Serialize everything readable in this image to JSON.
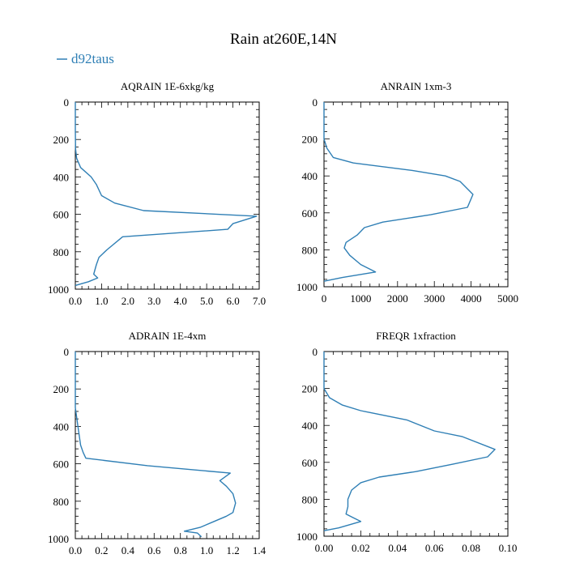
{
  "figure": {
    "title": "Rain at260E,14N",
    "legend": {
      "label": "d92taus",
      "color": "#2f7fb5",
      "placement": "top-left"
    }
  },
  "chart_data": [
    {
      "type": "line",
      "title": "AQRAIN  1E-6xkg/kg",
      "xlim": [
        0,
        7
      ],
      "xticks": [
        0,
        1,
        2,
        3,
        4,
        5,
        6,
        7
      ],
      "xtick_labels": [
        "0.0",
        "1.0",
        "2.0",
        "3.0",
        "4.0",
        "5.0",
        "6.0",
        "7.0"
      ],
      "ylim": [
        1000,
        0
      ],
      "yticks": [
        0,
        200,
        400,
        600,
        800,
        1000
      ],
      "ytick_labels": [
        "0",
        "200",
        "400",
        "600",
        "800",
        "1000"
      ],
      "series": [
        {
          "name": "d92taus",
          "x": [
            0,
            0,
            0.01,
            0.05,
            0.2,
            0.6,
            0.8,
            1.0,
            1.5,
            2.6,
            6.9,
            6.0,
            5.8,
            1.8,
            1.2,
            0.9,
            0.8,
            0.7,
            0.85,
            0.5,
            0
          ],
          "y": [
            0,
            150,
            250,
            300,
            350,
            400,
            440,
            500,
            540,
            580,
            610,
            650,
            680,
            720,
            790,
            830,
            870,
            920,
            940,
            960,
            980
          ]
        }
      ]
    },
    {
      "type": "line",
      "title": "ANRAIN  1xm-3",
      "xlim": [
        0,
        5000
      ],
      "xticks": [
        0,
        1000,
        2000,
        3000,
        4000,
        5000
      ],
      "xtick_labels": [
        "0",
        "1000",
        "2000",
        "3000",
        "4000",
        "5000"
      ],
      "ylim": [
        1000,
        0
      ],
      "yticks": [
        0,
        200,
        400,
        600,
        800,
        1000
      ],
      "ytick_labels": [
        "0",
        "200",
        "400",
        "600",
        "800",
        "1000"
      ],
      "series": [
        {
          "name": "d92taus",
          "x": [
            0,
            0,
            80,
            250,
            800,
            2400,
            3300,
            3700,
            4050,
            3900,
            2900,
            1600,
            1100,
            900,
            600,
            550,
            700,
            1000,
            1400,
            500,
            0
          ],
          "y": [
            0,
            200,
            250,
            300,
            330,
            370,
            400,
            430,
            500,
            570,
            610,
            650,
            680,
            720,
            760,
            790,
            830,
            880,
            920,
            950,
            970
          ]
        }
      ]
    },
    {
      "type": "line",
      "title": "ADRAIN  1E-4xm",
      "xlim": [
        0,
        1.4
      ],
      "xticks": [
        0,
        0.2,
        0.4,
        0.6,
        0.8,
        1.0,
        1.2,
        1.4
      ],
      "xtick_labels": [
        "0.0",
        "0.2",
        "0.4",
        "0.6",
        "0.8",
        "1.0",
        "1.2",
        "1.4"
      ],
      "ylim": [
        1000,
        0
      ],
      "yticks": [
        0,
        200,
        400,
        600,
        800,
        1000
      ],
      "ytick_labels": [
        "0",
        "200",
        "400",
        "600",
        "800",
        "1000"
      ],
      "series": [
        {
          "name": "d92taus",
          "x": [
            0,
            0,
            0.02,
            0.04,
            0.06,
            0.08,
            0.55,
            1.18,
            1.1,
            1.15,
            1.2,
            1.22,
            1.2,
            1.15,
            1.05,
            0.95,
            0.83,
            0.93,
            0.96
          ],
          "y": [
            0,
            300,
            400,
            500,
            540,
            570,
            610,
            650,
            690,
            720,
            760,
            810,
            860,
            880,
            910,
            940,
            960,
            970,
            990
          ]
        }
      ]
    },
    {
      "type": "line",
      "title": "FREQR  1xfraction",
      "xlim": [
        0,
        0.1
      ],
      "xticks": [
        0,
        0.02,
        0.04,
        0.06,
        0.08,
        0.1
      ],
      "xtick_labels": [
        "0.00",
        "0.02",
        "0.04",
        "0.06",
        "0.08",
        "0.10"
      ],
      "ylim": [
        1000,
        0
      ],
      "yticks": [
        0,
        200,
        400,
        600,
        800,
        1000
      ],
      "ytick_labels": [
        "0",
        "200",
        "400",
        "600",
        "800",
        "1000"
      ],
      "series": [
        {
          "name": "d92taus",
          "x": [
            0,
            0,
            0.003,
            0.01,
            0.02,
            0.045,
            0.06,
            0.075,
            0.093,
            0.089,
            0.07,
            0.05,
            0.03,
            0.02,
            0.015,
            0.013,
            0.013,
            0.012,
            0.016,
            0.02,
            0.008,
            0
          ],
          "y": [
            0,
            200,
            250,
            290,
            320,
            370,
            430,
            460,
            530,
            570,
            610,
            650,
            680,
            710,
            750,
            800,
            840,
            880,
            900,
            920,
            955,
            970
          ]
        }
      ]
    }
  ]
}
